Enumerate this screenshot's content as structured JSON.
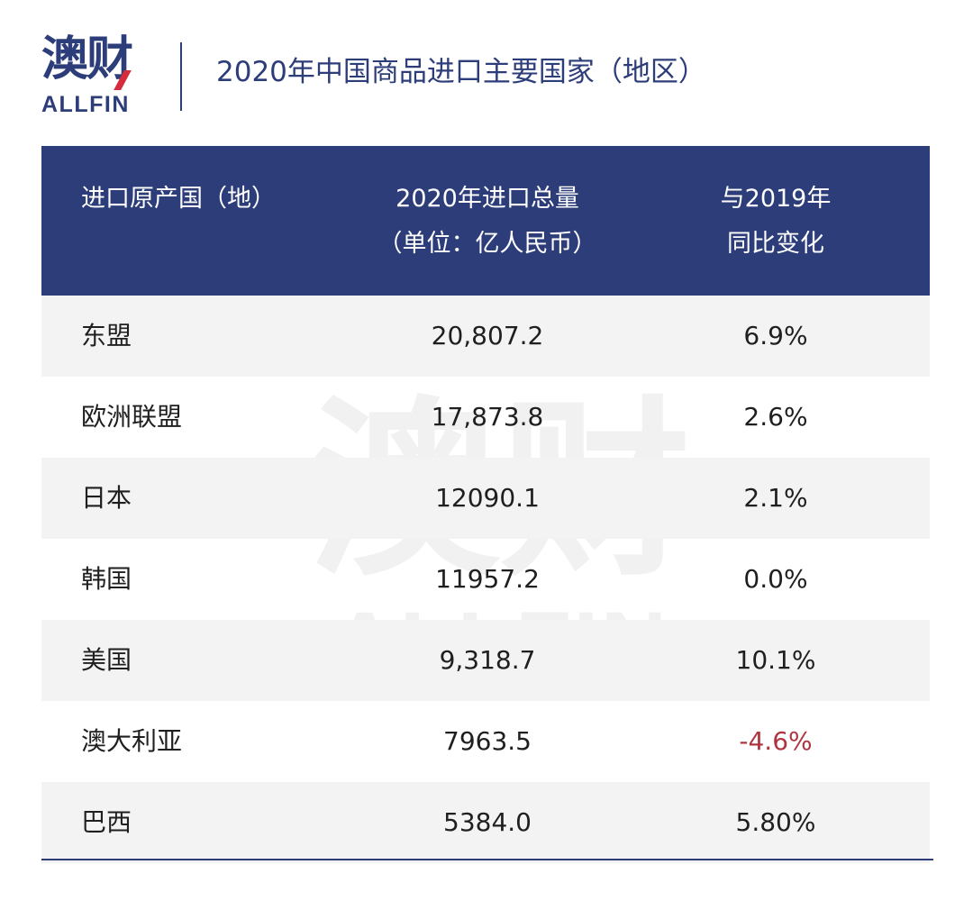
{
  "header": {
    "logo_cn": "澳财",
    "logo_en": "ALLFIN",
    "title": "2020年中国商品进口主要国家（地区）"
  },
  "table": {
    "columns": {
      "country": "进口原产国（地）",
      "volume_line1": "2020年进口总量",
      "volume_line2": "（单位：亿人民币）",
      "change_line1": "与2019年",
      "change_line2": "同比变化"
    },
    "rows": [
      {
        "country": "东盟",
        "volume": "20,807.2",
        "change": "6.9%"
      },
      {
        "country": "欧洲联盟",
        "volume": "17,873.8",
        "change": "2.6%"
      },
      {
        "country": "日本",
        "volume": "12090.1",
        "change": "2.1%"
      },
      {
        "country": "韩国",
        "volume": "11957.2",
        "change": "0.0%"
      },
      {
        "country": "美国",
        "volume": "9,318.7",
        "change": "10.1%"
      },
      {
        "country": "澳大利亚",
        "volume": "7963.5",
        "change": "-4.6%"
      },
      {
        "country": "巴西",
        "volume": "5384.0",
        "change": "5.80%"
      }
    ]
  },
  "colors": {
    "brand_navy": "#2c3d79",
    "logo_accent_red": "#d42c3c",
    "negative_red": "#b0343f",
    "stripe_gray": "#f3f3f3"
  },
  "watermark": {
    "cn": "澳财",
    "en": "ALLFIN"
  }
}
